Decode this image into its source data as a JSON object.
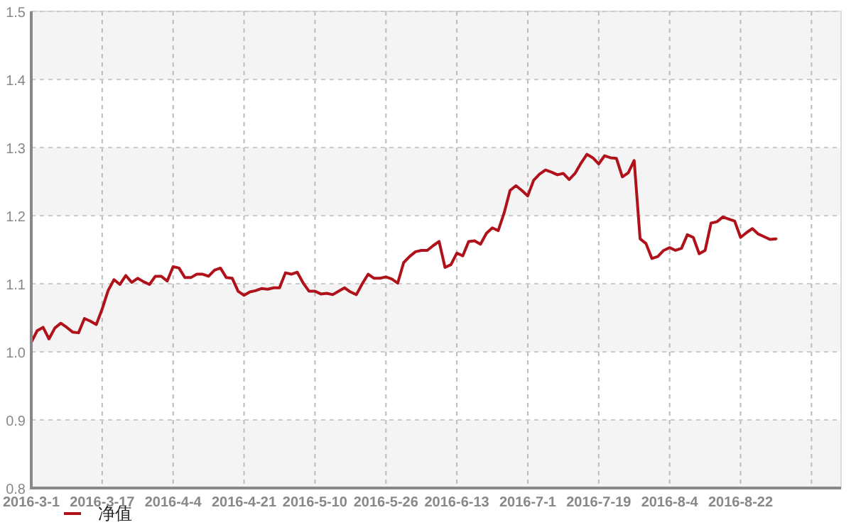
{
  "chart_data": {
    "type": "line",
    "categories": [
      "2016-3-1",
      null,
      null,
      null,
      null,
      null,
      null,
      null,
      null,
      null,
      null,
      null,
      "2016-3-17",
      null,
      null,
      null,
      null,
      null,
      null,
      null,
      null,
      null,
      null,
      null,
      "2016-4-4",
      null,
      null,
      null,
      null,
      null,
      null,
      null,
      null,
      null,
      null,
      null,
      "2016-4-21",
      null,
      null,
      null,
      null,
      null,
      null,
      null,
      null,
      null,
      null,
      null,
      "2016-5-10",
      null,
      null,
      null,
      null,
      null,
      null,
      null,
      null,
      null,
      null,
      null,
      "2016-5-26",
      null,
      null,
      null,
      null,
      null,
      null,
      null,
      null,
      null,
      null,
      null,
      "2016-6-13",
      null,
      null,
      null,
      null,
      null,
      null,
      null,
      null,
      null,
      null,
      null,
      "2016-7-1",
      null,
      null,
      null,
      null,
      null,
      null,
      null,
      null,
      null,
      null,
      null,
      "2016-7-19",
      null,
      null,
      null,
      null,
      null,
      null,
      null,
      null,
      null,
      null,
      null,
      "2016-8-4",
      null,
      null,
      null,
      null,
      null,
      null,
      null,
      null,
      null,
      null,
      null,
      "2016-8-22",
      null,
      null,
      null,
      null,
      null,
      null,
      null,
      null,
      null,
      null,
      null,
      null,
      null,
      null,
      null,
      null,
      null
    ],
    "series": [
      {
        "name": "净值",
        "color": "#b0121b",
        "values": [
          1.014,
          1.031,
          1.036,
          1.019,
          1.035,
          1.042,
          1.036,
          1.029,
          1.028,
          1.049,
          1.045,
          1.04,
          1.063,
          1.09,
          1.106,
          1.099,
          1.112,
          1.102,
          1.108,
          1.103,
          1.099,
          1.111,
          1.111,
          1.104,
          1.125,
          1.123,
          1.109,
          1.109,
          1.114,
          1.114,
          1.111,
          1.12,
          1.123,
          1.109,
          1.108,
          1.089,
          1.083,
          1.088,
          1.09,
          1.093,
          1.092,
          1.094,
          1.094,
          1.116,
          1.114,
          1.117,
          1.101,
          1.089,
          1.089,
          1.085,
          1.086,
          1.084,
          1.089,
          1.094,
          1.088,
          1.084,
          1.1,
          1.114,
          1.108,
          1.108,
          1.11,
          1.107,
          1.101,
          1.131,
          1.14,
          1.147,
          1.149,
          1.149,
          1.156,
          1.162,
          1.124,
          1.128,
          1.145,
          1.141,
          1.162,
          1.163,
          1.158,
          1.174,
          1.182,
          1.178,
          1.204,
          1.237,
          1.244,
          1.237,
          1.229,
          1.252,
          1.261,
          1.267,
          1.264,
          1.26,
          1.262,
          1.253,
          1.262,
          1.277,
          1.29,
          1.285,
          1.276,
          1.288,
          1.285,
          1.284,
          1.257,
          1.263,
          1.281,
          1.166,
          1.159,
          1.137,
          1.14,
          1.149,
          1.153,
          1.149,
          1.152,
          1.172,
          1.168,
          1.144,
          1.149,
          1.189,
          1.191,
          1.198,
          1.195,
          1.192,
          1.168,
          1.175,
          1.181,
          1.173,
          1.169,
          1.165,
          1.166,
          null,
          null,
          null,
          null,
          null,
          null,
          null,
          null,
          null,
          null,
          null
        ]
      }
    ],
    "ylim": [
      0.8,
      1.5
    ],
    "yticks": [
      0.8,
      0.9,
      {
        "value": 1.0,
        "label": "1.0"
      },
      1.1,
      1.2,
      1.3,
      1.4,
      1.5
    ],
    "grid": true,
    "legend": "bottom left",
    "marker": "none",
    "line_style": "solid"
  }
}
